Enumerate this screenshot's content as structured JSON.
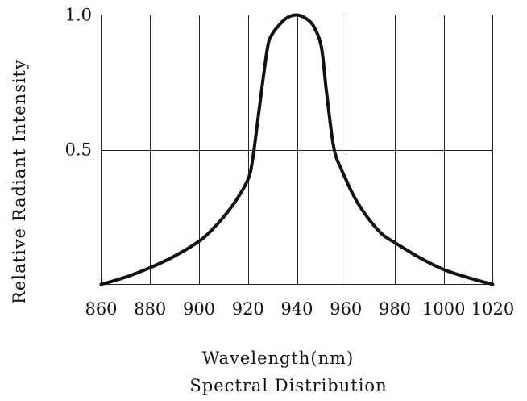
{
  "chart_data": {
    "type": "line",
    "title": "",
    "subtitle": "Spectral Distribution",
    "xlabel": "Wavelength(nm)",
    "ylabel": "Relative Radiant Intensity",
    "xlim": [
      860,
      1020
    ],
    "ylim": [
      0,
      1.0
    ],
    "x_ticks": [
      860,
      880,
      900,
      920,
      940,
      960,
      980,
      1000,
      1020
    ],
    "y_ticks": [
      0.5,
      1.0
    ],
    "y_tick_labels": [
      "0.5",
      "1.0"
    ],
    "grid": true,
    "legend": "none",
    "series": [
      {
        "x": [
          860,
          870,
          880,
          890,
          900,
          905,
          910,
          915,
          920,
          922,
          925,
          928,
          930,
          933,
          936,
          940,
          944,
          947,
          950,
          952,
          955,
          958,
          960,
          962,
          965,
          970,
          975,
          980,
          990,
          1000,
          1010,
          1020
        ],
        "y": [
          0.0,
          0.027,
          0.062,
          0.105,
          0.16,
          0.2,
          0.25,
          0.31,
          0.39,
          0.47,
          0.68,
          0.88,
          0.93,
          0.965,
          0.99,
          1.0,
          0.985,
          0.955,
          0.88,
          0.72,
          0.51,
          0.43,
          0.39,
          0.35,
          0.3,
          0.235,
          0.185,
          0.155,
          0.1,
          0.055,
          0.025,
          0.0
        ]
      }
    ]
  }
}
